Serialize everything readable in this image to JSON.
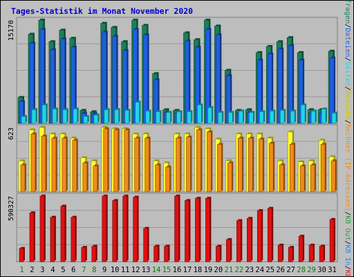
{
  "chart_data": {
    "type": "bar",
    "title": "Tages-Statistik im Monat November 2020",
    "categories": [
      "1",
      "2",
      "3",
      "4",
      "5",
      "6",
      "7",
      "8",
      "9",
      "10",
      "11",
      "12",
      "13",
      "14",
      "15",
      "16",
      "17",
      "18",
      "19",
      "20",
      "21",
      "22",
      "23",
      "24",
      "25",
      "26",
      "27",
      "28",
      "29",
      "30",
      "31"
    ],
    "weekend_days": [
      "1",
      "7",
      "8",
      "14",
      "15",
      "21",
      "22",
      "28",
      "29"
    ],
    "colors": {
      "title": "#0000cc",
      "weekday_label": "#000000",
      "weekend_label": "#008000",
      "anfragen": "#1a7f5a",
      "dateien": "#1f5fe0",
      "seiten": "#22d3e6",
      "besuche": "#ffff33",
      "rechner": "#f08a1a",
      "kb_f": "#dd1111",
      "kb_in": "#1e88e5",
      "kb_out": "#2e9e3e"
    },
    "panels": [
      {
        "id": "requests",
        "ymax_label": "15170",
        "ymax": 15170,
        "series": [
          {
            "name": "Anfragen",
            "values": [
              3800,
              13100,
              15170,
              12000,
              13700,
              12500,
              1900,
              1700,
              14700,
              14100,
              12000,
              15170,
              14400,
              7300,
              2000,
              1900,
              13300,
              12300,
              15170,
              14300,
              7800,
              1900,
              2000,
              10400,
              11300,
              12000,
              12600,
              10400,
              2000,
              2000,
              10600
            ]
          },
          {
            "name": "Dateien",
            "values": [
              3200,
              11800,
              13800,
              10800,
              12400,
              11200,
              1500,
              1400,
              13400,
              12800,
              10700,
              13800,
              13000,
              6400,
              1600,
              1500,
              12100,
              11200,
              13800,
              13000,
              7000,
              1500,
              1600,
              9300,
              10200,
              10900,
              11400,
              9300,
              1600,
              1600,
              9600
            ]
          },
          {
            "name": "Seiten",
            "values": [
              1000,
              2000,
              2700,
              2100,
              2000,
              2100,
              1000,
              1200,
              2000,
              2000,
              1900,
              3100,
              1800,
              1700,
              1600,
              1700,
              1700,
              2700,
              2300,
              1600,
              1600,
              1800,
              1600,
              1700,
              1800,
              1900,
              1800,
              2700,
              1800,
              2100,
              1500
            ]
          }
        ]
      },
      {
        "id": "visitors",
        "ymax_label": "623",
        "ymax": 623,
        "series": [
          {
            "name": "Besuche",
            "values": [
              300,
              600,
              623,
              560,
              560,
              520,
              330,
              300,
              623,
              610,
              610,
              560,
              560,
              300,
              280,
              560,
              560,
              623,
              610,
              510,
              300,
              560,
              560,
              560,
              520,
              300,
              580,
              290,
              300,
              500,
              340
            ]
          },
          {
            "name": "Rechner",
            "values": [
              260,
              560,
              540,
              520,
              520,
              500,
              280,
              250,
              610,
              600,
              600,
              520,
              520,
              260,
              240,
              520,
              530,
              600,
              580,
              460,
              280,
              520,
              520,
              510,
              470,
              260,
              460,
              250,
              260,
              460,
              300
            ]
          }
        ]
      },
      {
        "id": "traffic",
        "ymax_label": "590327",
        "ymax": 590327,
        "series": [
          {
            "name": "KB F",
            "values": [
              120000,
              440000,
              590327,
              400000,
              500000,
              400000,
              130000,
              140000,
              590327,
              550000,
              590327,
              580000,
              300000,
              140000,
              140000,
              590327,
              550000,
              570000,
              570000,
              140000,
              200000,
              370000,
              390000,
              460000,
              480000,
              150000,
              130000,
              230000,
              150000,
              140000,
              380000
            ]
          }
        ]
      }
    ],
    "right_legend": [
      {
        "text": "Anfragen",
        "panel": "requests",
        "color": "#1a7f5a"
      },
      {
        "text": "/",
        "panel": "requests",
        "color": "#000000"
      },
      {
        "text": "Dateien",
        "panel": "requests",
        "color": "#1f5fe0"
      },
      {
        "text": "/",
        "panel": "requests",
        "color": "#000000"
      },
      {
        "text": "Seiten",
        "panel": "requests",
        "color": "#22d3e6"
      },
      {
        "text": "/",
        "panel": "requests",
        "color": "#000000"
      },
      {
        "text": "Besuche",
        "panel": "visitors",
        "color": "#c8c800"
      },
      {
        "text": "/",
        "panel": "visitors",
        "color": "#000000"
      },
      {
        "text": "Rechner (IP-Adressen)",
        "panel": "visitors",
        "color": "#f08a1a"
      },
      {
        "text": "/",
        "panel": "visitors",
        "color": "#000000"
      },
      {
        "text": "KB Out",
        "panel": "traffic",
        "color": "#2e9e3e"
      },
      {
        "text": "/",
        "panel": "traffic",
        "color": "#000000"
      },
      {
        "text": "KB In",
        "panel": "traffic",
        "color": "#1e88e5"
      },
      {
        "text": "/",
        "panel": "traffic",
        "color": "#000000"
      },
      {
        "text": "KB F",
        "panel": "traffic",
        "color": "#dd1111"
      }
    ]
  }
}
